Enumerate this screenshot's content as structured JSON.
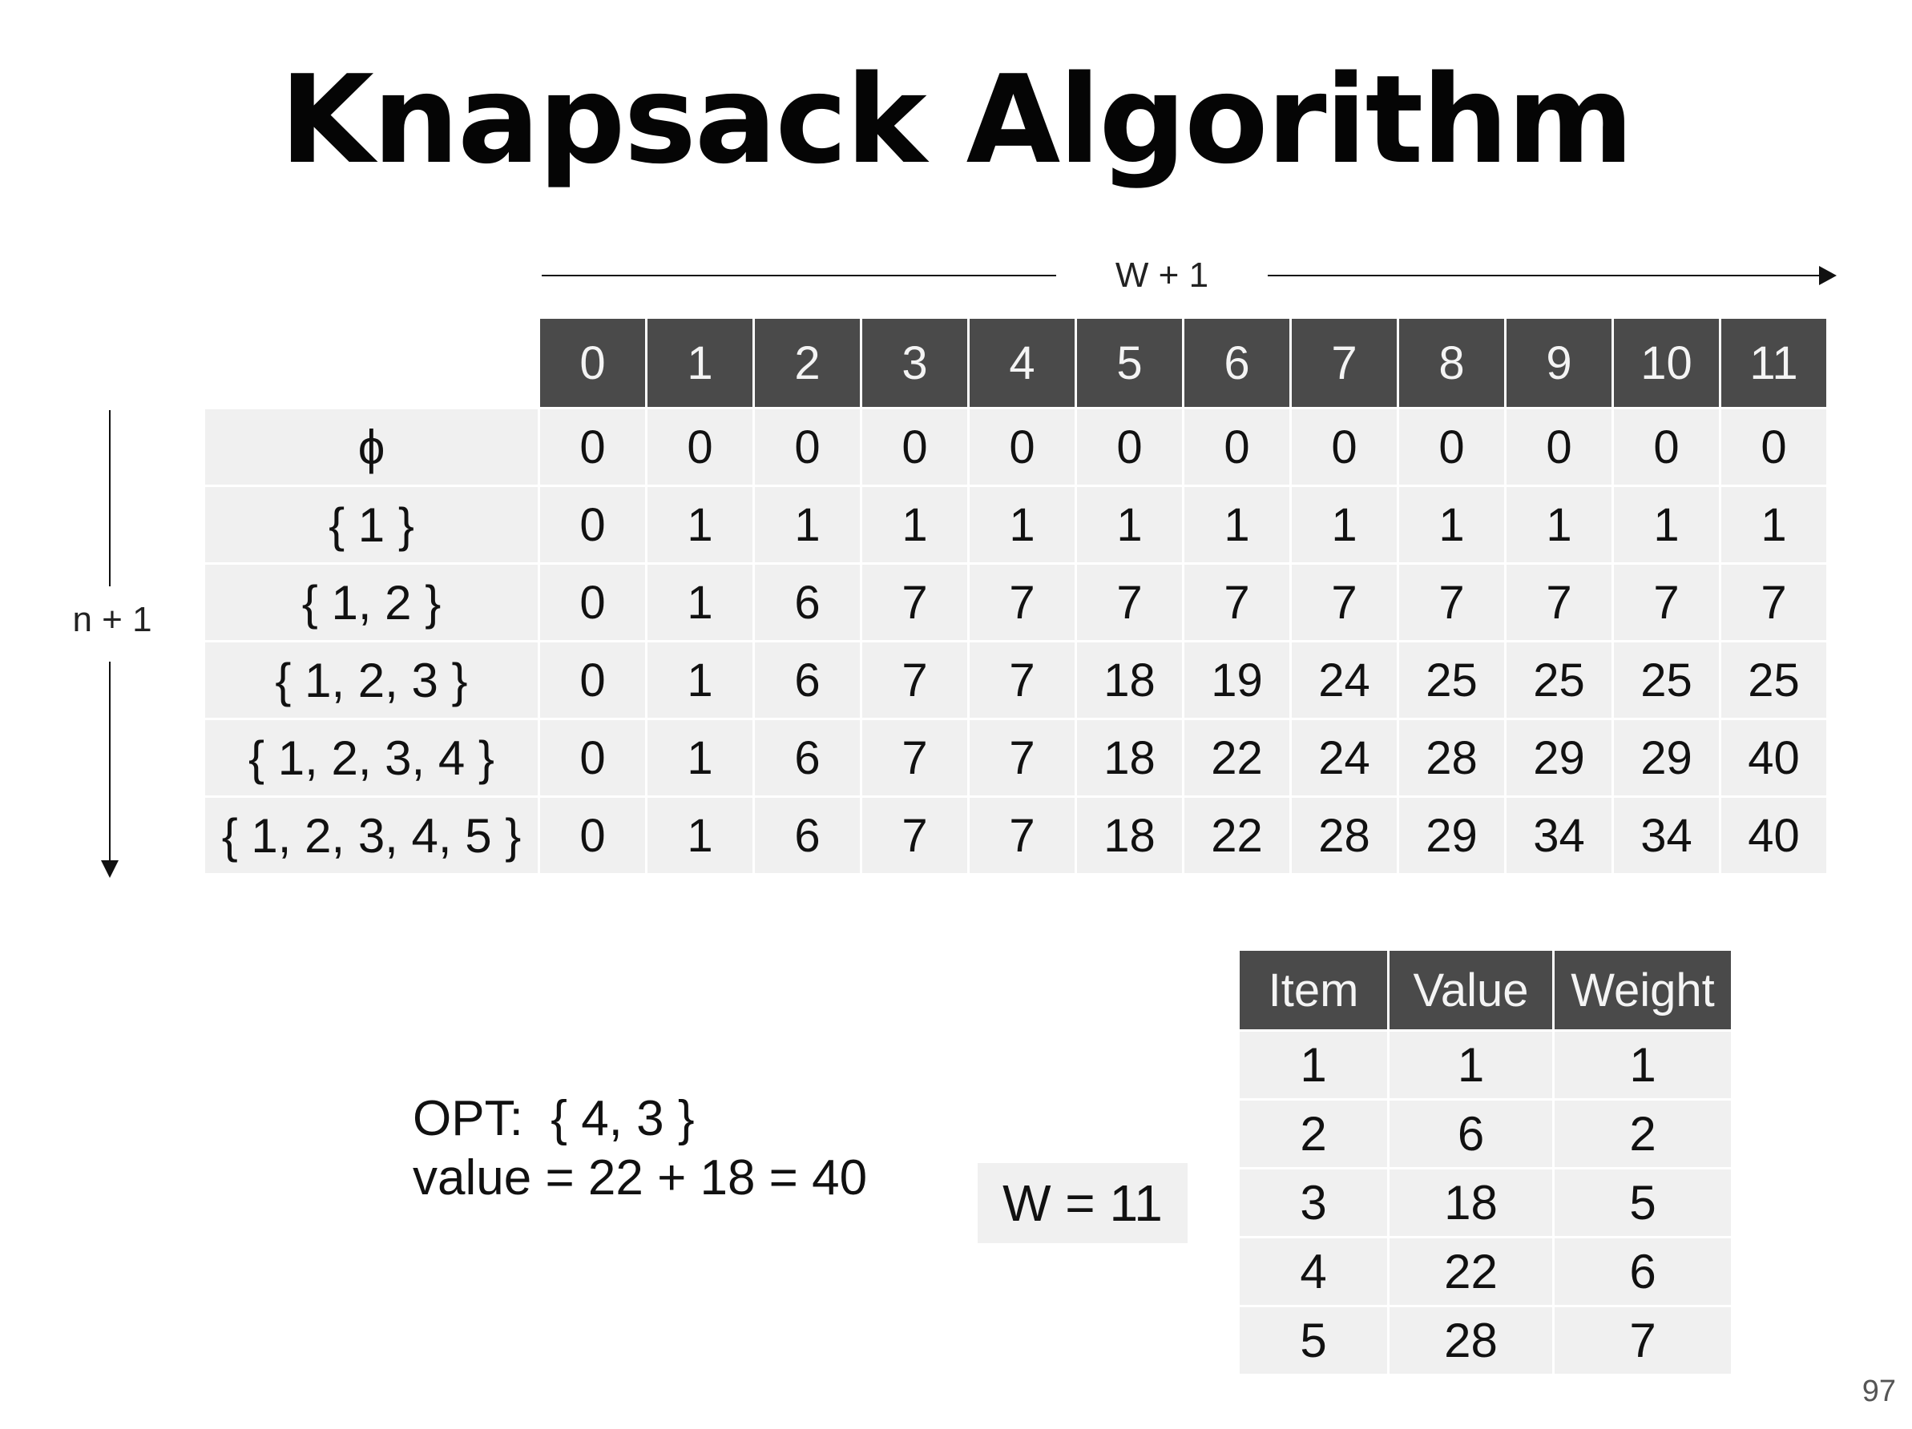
{
  "slide": {
    "title": "Knapsack Algorithm",
    "page_number": "97"
  },
  "axes": {
    "w_label": "W + 1",
    "n_label": "n + 1"
  },
  "dp_table": {
    "columns": [
      "0",
      "1",
      "2",
      "3",
      "4",
      "5",
      "6",
      "7",
      "8",
      "9",
      "10",
      "11"
    ],
    "rows": [
      {
        "label": "ϕ",
        "values": [
          "0",
          "0",
          "0",
          "0",
          "0",
          "0",
          "0",
          "0",
          "0",
          "0",
          "0",
          "0"
        ]
      },
      {
        "label": "{ 1 }",
        "values": [
          "0",
          "1",
          "1",
          "1",
          "1",
          "1",
          "1",
          "1",
          "1",
          "1",
          "1",
          "1"
        ]
      },
      {
        "label": "{ 1, 2 }",
        "values": [
          "0",
          "1",
          "6",
          "7",
          "7",
          "7",
          "7",
          "7",
          "7",
          "7",
          "7",
          "7"
        ]
      },
      {
        "label": "{ 1, 2, 3 }",
        "values": [
          "0",
          "1",
          "6",
          "7",
          "7",
          "18",
          "19",
          "24",
          "25",
          "25",
          "25",
          "25"
        ]
      },
      {
        "label": "{ 1, 2, 3, 4 }",
        "values": [
          "0",
          "1",
          "6",
          "7",
          "7",
          "18",
          "22",
          "24",
          "28",
          "29",
          "29",
          "40"
        ]
      },
      {
        "label": "{ 1, 2, 3, 4, 5 }",
        "values": [
          "0",
          "1",
          "6",
          "7",
          "7",
          "18",
          "22",
          "28",
          "29",
          "34",
          "34",
          "40"
        ]
      }
    ]
  },
  "opt": {
    "line1": "OPT:  { 4, 3 }",
    "line2": "value = 22 + 18 = 40"
  },
  "capacity": "W = 11",
  "items_table": {
    "headers": [
      "Item",
      "Value",
      "Weight"
    ],
    "rows": [
      [
        "1",
        "1",
        "1"
      ],
      [
        "2",
        "6",
        "2"
      ],
      [
        "3",
        "18",
        "5"
      ],
      [
        "4",
        "22",
        "6"
      ],
      [
        "5",
        "28",
        "7"
      ]
    ]
  }
}
